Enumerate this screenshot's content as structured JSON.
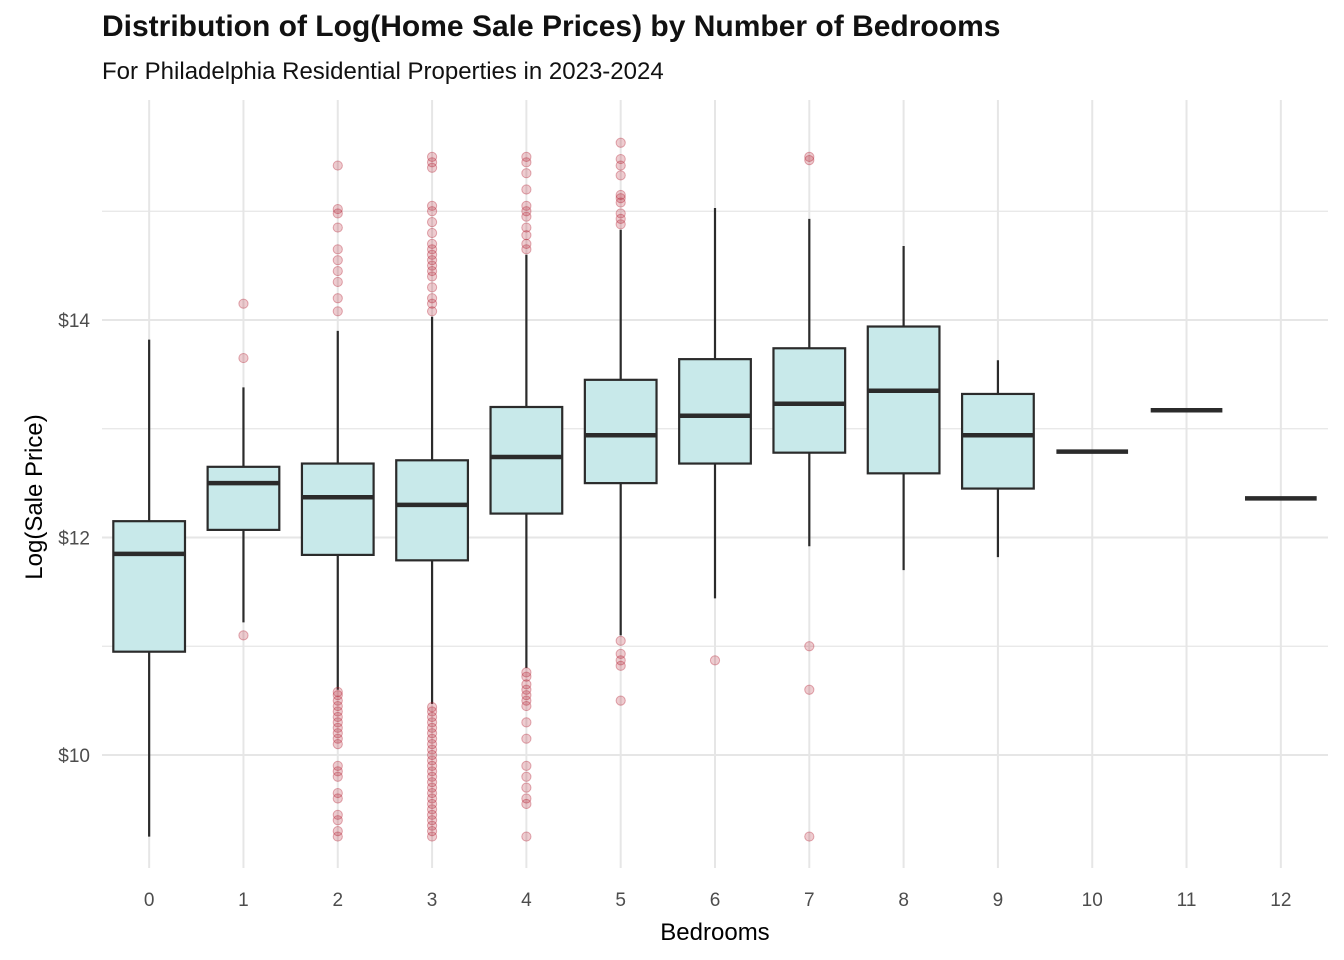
{
  "chart_data": {
    "type": "boxplot",
    "title": "Distribution of Log(Home Sale Prices) by Number of Bedrooms",
    "subtitle": "For Philadelphia Residential Properties in 2023-2024",
    "xlabel": "Bedrooms",
    "ylabel": "Log(Sale Price)",
    "ylim": [
      9.05,
      15.9
    ],
    "y_ticks": [
      10,
      12,
      14
    ],
    "y_tick_labels": [
      "$10",
      "$12",
      "$14"
    ],
    "colors": {
      "box_fill": "#c8e9ea",
      "box_stroke": "#2b2b2b",
      "outlier": "#b2182b",
      "grid": "#e6e6e6"
    },
    "categories": [
      "0",
      "1",
      "2",
      "3",
      "4",
      "5",
      "6",
      "7",
      "8",
      "9",
      "10",
      "11",
      "12"
    ],
    "boxes": [
      {
        "category": "0",
        "whisker_low": 9.25,
        "q1": 10.95,
        "median": 11.85,
        "q3": 12.15,
        "whisker_high": 13.82,
        "outliers": []
      },
      {
        "category": "1",
        "whisker_low": 11.22,
        "q1": 12.07,
        "median": 12.5,
        "q3": 12.65,
        "whisker_high": 13.38,
        "outliers": [
          11.1,
          13.65,
          14.15
        ]
      },
      {
        "category": "2",
        "whisker_low": 10.6,
        "q1": 11.84,
        "median": 12.37,
        "q3": 12.68,
        "whisker_high": 13.9,
        "outliers": [
          9.25,
          9.3,
          9.4,
          9.45,
          9.6,
          9.65,
          9.8,
          9.85,
          9.9,
          10.1,
          10.15,
          10.2,
          10.25,
          10.3,
          10.35,
          10.4,
          10.45,
          10.5,
          10.55,
          10.58,
          14.08,
          14.2,
          14.35,
          14.45,
          14.55,
          14.65,
          14.85,
          14.98,
          15.02,
          15.42
        ]
      },
      {
        "category": "3",
        "whisker_low": 10.47,
        "q1": 11.79,
        "median": 12.3,
        "q3": 12.71,
        "whisker_high": 14.03,
        "outliers": [
          9.25,
          9.3,
          9.35,
          9.4,
          9.45,
          9.5,
          9.55,
          9.6,
          9.65,
          9.7,
          9.75,
          9.8,
          9.85,
          9.9,
          9.95,
          10.0,
          10.05,
          10.1,
          10.15,
          10.2,
          10.25,
          10.3,
          10.35,
          10.4,
          10.44,
          14.08,
          14.15,
          14.2,
          14.3,
          14.4,
          14.45,
          14.5,
          14.55,
          14.6,
          14.65,
          14.7,
          14.8,
          14.9,
          15.0,
          15.05,
          15.4,
          15.45,
          15.5
        ]
      },
      {
        "category": "4",
        "whisker_low": 10.8,
        "q1": 12.22,
        "median": 12.74,
        "q3": 13.2,
        "whisker_high": 14.6,
        "outliers": [
          9.25,
          9.55,
          9.6,
          9.7,
          9.8,
          9.9,
          10.15,
          10.3,
          10.45,
          10.5,
          10.55,
          10.6,
          10.65,
          10.72,
          10.76,
          14.65,
          14.7,
          14.78,
          14.85,
          14.95,
          15.0,
          15.05,
          15.2,
          15.35,
          15.45,
          15.5
        ]
      },
      {
        "category": "5",
        "whisker_low": 11.1,
        "q1": 12.5,
        "median": 12.94,
        "q3": 13.45,
        "whisker_high": 14.83,
        "outliers": [
          10.5,
          10.82,
          10.87,
          10.93,
          11.05,
          14.88,
          14.93,
          14.98,
          15.08,
          15.12,
          15.15,
          15.33,
          15.42,
          15.48,
          15.63
        ]
      },
      {
        "category": "6",
        "whisker_low": 11.44,
        "q1": 12.68,
        "median": 13.12,
        "q3": 13.64,
        "whisker_high": 15.03,
        "outliers": [
          10.87
        ]
      },
      {
        "category": "7",
        "whisker_low": 11.92,
        "q1": 12.78,
        "median": 13.23,
        "q3": 13.74,
        "whisker_high": 14.93,
        "outliers": [
          9.25,
          10.6,
          11.0,
          15.47,
          15.5
        ]
      },
      {
        "category": "8",
        "whisker_low": 11.7,
        "q1": 12.59,
        "median": 13.35,
        "q3": 13.94,
        "whisker_high": 14.68,
        "outliers": []
      },
      {
        "category": "9",
        "whisker_low": 11.82,
        "q1": 12.45,
        "median": 12.94,
        "q3": 13.32,
        "whisker_high": 13.63,
        "outliers": []
      },
      {
        "category": "10",
        "whisker_low": 12.79,
        "q1": 12.79,
        "median": 12.79,
        "q3": 12.79,
        "whisker_high": 12.79,
        "outliers": []
      },
      {
        "category": "11",
        "whisker_low": 13.17,
        "q1": 13.17,
        "median": 13.17,
        "q3": 13.17,
        "whisker_high": 13.17,
        "outliers": []
      },
      {
        "category": "12",
        "whisker_low": 12.36,
        "q1": 12.36,
        "median": 12.36,
        "q3": 12.36,
        "whisker_high": 12.36,
        "outliers": []
      }
    ]
  }
}
